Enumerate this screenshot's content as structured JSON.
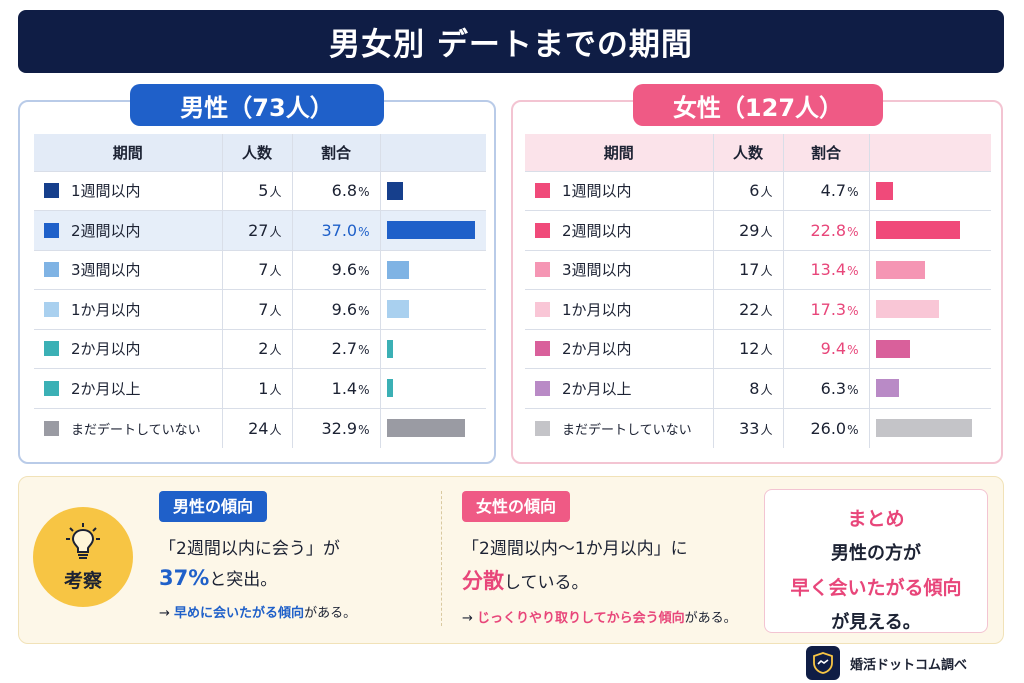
{
  "title": "男女別 デートまでの期間",
  "headers": {
    "period": "期間",
    "count": "人数",
    "ratio": "割合"
  },
  "unit_person": "人",
  "unit_pct": "%",
  "male": {
    "label": "男性（73人）",
    "color": "#1f60c9"
  },
  "female": {
    "label": "女性（127人）",
    "color": "#ef5a85"
  },
  "chart_data": [
    {
      "type": "table",
      "title": "男性（73人）",
      "categories": [
        "1週間以内",
        "2週間以内",
        "3週間以内",
        "1か月以内",
        "2か月以内",
        "2か月以上",
        "まだデートしていない"
      ],
      "counts": [
        5,
        27,
        7,
        7,
        2,
        1,
        24
      ],
      "values": [
        6.8,
        37.0,
        9.6,
        9.6,
        2.7,
        1.4,
        32.9
      ],
      "colors": [
        "#163f8c",
        "#1f60c9",
        "#7fb3e4",
        "#a9d0ef",
        "#3bb0b5",
        "#3bb0b5",
        "#9a9ba3"
      ],
      "highlight_pct": [
        false,
        true,
        false,
        false,
        false,
        false,
        false
      ],
      "highlight_row": 1,
      "xlim": [
        0,
        37.0
      ]
    },
    {
      "type": "table",
      "title": "女性（127人）",
      "categories": [
        "1週間以内",
        "2週間以内",
        "3週間以内",
        "1か月以内",
        "2か月以内",
        "2か月以上",
        "まだデートしていない"
      ],
      "counts": [
        6,
        29,
        17,
        22,
        12,
        8,
        33
      ],
      "values": [
        4.7,
        22.8,
        13.4,
        17.3,
        9.4,
        6.3,
        26.0
      ],
      "colors": [
        "#f04a7a",
        "#f04a7a",
        "#f596b4",
        "#f9c6d6",
        "#d9609b",
        "#b98ac6",
        "#c4c4c8"
      ],
      "highlight_pct": [
        false,
        true,
        true,
        true,
        true,
        false,
        false
      ],
      "xlim": [
        0,
        26.0
      ]
    }
  ],
  "insight": {
    "label": "考察",
    "male": {
      "tag": "男性の傾向",
      "line1": "「2週間以内に会う」が",
      "line2_emph": "37%",
      "line2_rest": "と突出。",
      "line3_arrow": "→",
      "line3_hl": "早めに会いたがる傾向",
      "line3_rest": "がある。"
    },
    "female": {
      "tag": "女性の傾向",
      "line1": "「2週間以内〜1か月以内」に",
      "line2_emph": "分散",
      "line2_rest": "している。",
      "line3_arrow": "→",
      "line3_hl": "じっくりやり取りしてから会う傾向",
      "line3_rest": "がある。"
    },
    "summary": {
      "title": "まとめ",
      "l1": "男性の方が",
      "l2": "早く会いたがる傾向",
      "l3": "が見える。"
    }
  },
  "footer": {
    "text": "婚活ドットコム調べ"
  }
}
